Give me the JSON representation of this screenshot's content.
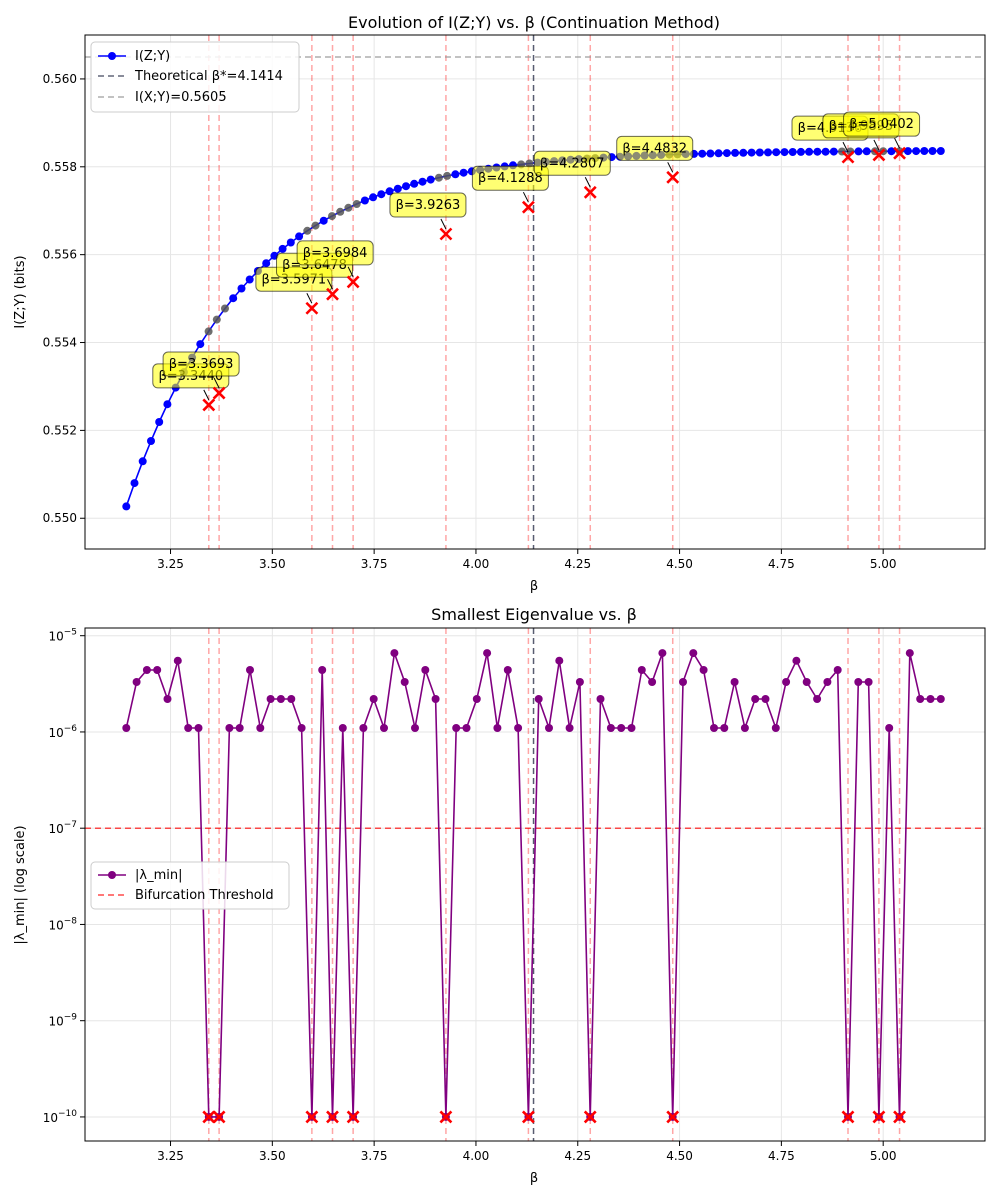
{
  "chart_data": [
    {
      "type": "line",
      "title": "Evolution of I(Z;Y) vs. β (Continuation Method)",
      "xlabel": "β",
      "ylabel": "I(Z;Y) (bits)",
      "xlim": [
        3.04,
        5.25
      ],
      "ylim": [
        0.5493,
        0.561
      ],
      "xticks": [
        "3.25",
        "3.50",
        "3.75",
        "4.00",
        "4.25",
        "4.50",
        "4.75",
        "5.00"
      ],
      "yticks": [
        "0.550",
        "0.552",
        "0.554",
        "0.556",
        "0.558",
        "0.560"
      ],
      "grid": true,
      "legend_position": "upper-left",
      "legend": {
        "series": "I(Z;Y)",
        "theory": "Theoretical β*=4.1414",
        "ixy": "I(X;Y)=0.5605"
      },
      "theoretical_beta": 4.1414,
      "ixy_value": 0.5605,
      "curve": {
        "beta_start": 3.1414,
        "beta_end": 5.1414,
        "points": 100,
        "a": 0.55837,
        "b": 0.00787,
        "k": 3.35,
        "x0": 3.15
      },
      "near_bifurcation_window": 0.02,
      "bifurcations": [
        {
          "beta": 3.344,
          "label": "β=3.3440",
          "y": 0.55258
        },
        {
          "beta": 3.3693,
          "label": "β=3.3693",
          "y": 0.55285
        },
        {
          "beta": 3.5971,
          "label": "β=3.5971",
          "y": 0.55478
        },
        {
          "beta": 3.6478,
          "label": "β=3.6478",
          "y": 0.5551
        },
        {
          "beta": 3.6984,
          "label": "β=3.6984",
          "y": 0.55538
        },
        {
          "beta": 3.9263,
          "label": "β=3.9263",
          "y": 0.55647
        },
        {
          "beta": 4.1288,
          "label": "β=4.1288",
          "y": 0.55708
        },
        {
          "beta": 4.2807,
          "label": "β=4.2807",
          "y": 0.55742
        },
        {
          "beta": 4.4832,
          "label": "β=4.4832",
          "y": 0.55776
        },
        {
          "beta": 4.9136,
          "label": "β=4.9136",
          "y": 0.55822
        },
        {
          "beta": 4.9895,
          "label": "β=4.9895",
          "y": 0.55827
        },
        {
          "beta": 5.0402,
          "label": "β=5.0402",
          "y": 0.55831
        }
      ]
    },
    {
      "type": "line",
      "title": "Smallest Eigenvalue vs. β",
      "xlabel": "β",
      "ylabel": "|λ_min| (log scale)",
      "yscale": "log",
      "xlim": [
        3.04,
        5.25
      ],
      "ylim_log10": [
        -10.25,
        -4.92
      ],
      "xticks": [
        "3.25",
        "3.50",
        "3.75",
        "4.00",
        "4.25",
        "4.50",
        "4.75",
        "5.00"
      ],
      "yticks": [
        {
          "exp": -10,
          "base": "10",
          "sup": "−10"
        },
        {
          "exp": -9,
          "base": "10",
          "sup": "−9"
        },
        {
          "exp": -8,
          "base": "10",
          "sup": "−8"
        },
        {
          "exp": -7,
          "base": "10",
          "sup": "−7"
        },
        {
          "exp": -6,
          "base": "10",
          "sup": "−6"
        },
        {
          "exp": -5,
          "base": "10",
          "sup": "−5"
        }
      ],
      "grid": true,
      "legend_position": "center-left",
      "legend": {
        "series": "|λ_min|",
        "threshold": "Bifurcation Threshold"
      },
      "threshold": 1e-07,
      "theoretical_beta": 4.1414,
      "x_start": 3.1414,
      "x_end": 5.1414,
      "values": [
        1.1e-06,
        3.3e-06,
        4.4e-06,
        4.4e-06,
        2.2e-06,
        5.5e-06,
        1.1e-06,
        1.1e-06,
        1e-10,
        1e-10,
        1.1e-06,
        1.1e-06,
        4.4e-06,
        1.1e-06,
        2.2e-06,
        2.2e-06,
        2.2e-06,
        1.1e-06,
        1e-10,
        4.4e-06,
        1e-10,
        1.1e-06,
        1e-10,
        1.1e-06,
        2.2e-06,
        1.1e-06,
        6.6e-06,
        3.3e-06,
        1.1e-06,
        4.4e-06,
        2.2e-06,
        1e-10,
        1.1e-06,
        1.1e-06,
        2.2e-06,
        6.6e-06,
        1.1e-06,
        4.4e-06,
        1.1e-06,
        1e-10,
        2.2e-06,
        1.1e-06,
        5.5e-06,
        1.1e-06,
        3.3e-06,
        1e-10,
        2.2e-06,
        1.1e-06,
        1.1e-06,
        1.1e-06,
        4.4e-06,
        3.3e-06,
        6.6e-06,
        1e-10,
        3.3e-06,
        6.6e-06,
        4.4e-06,
        1.1e-06,
        1.1e-06,
        3.3e-06,
        1.1e-06,
        2.2e-06,
        2.2e-06,
        1.1e-06,
        3.3e-06,
        5.5e-06,
        3.3e-06,
        2.2e-06,
        3.3e-06,
        4.4e-06,
        1e-10,
        3.3e-06,
        3.3e-06,
        1e-10,
        1.1e-06,
        1e-10,
        6.6e-06,
        2.2e-06,
        2.2e-06,
        2.2e-06
      ],
      "bifurcation_betas": [
        3.344,
        3.3693,
        3.5971,
        3.6478,
        3.6984,
        3.9263,
        4.1288,
        4.2807,
        4.4832,
        4.9136,
        4.9895,
        5.0402
      ]
    }
  ],
  "colors": {
    "series1": "#0000ff",
    "series2": "#800080",
    "near_bifurcation": "#555555",
    "marker_x": "#ff0000",
    "bif_line": "#ff0000",
    "theory_line": "#1f2540",
    "ixy_line": "#999999",
    "annotation_fill": "#ffff00",
    "threshold": "#ff0000"
  }
}
